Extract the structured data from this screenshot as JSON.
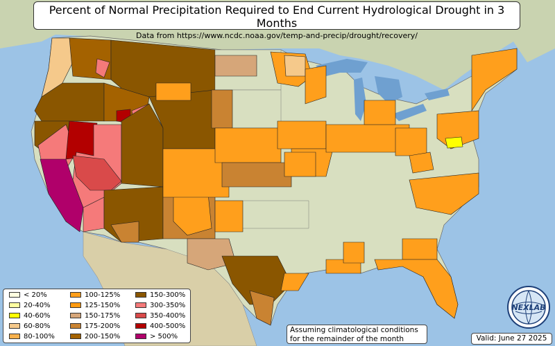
{
  "title": "Percent of Normal Precipitation Required to End Current Hydrological Drought in 3 Months",
  "subtitle": "Data from https://www.ncdc.noaa.gov/temp-and-precip/drought/recovery/",
  "note_line1": "Assuming climatological conditions",
  "note_line2": "for the remainder of the month",
  "valid": "Valid: June 27 2025",
  "logo_text": "NEXLAB",
  "colors": {
    "ocean": "#9cc3e6",
    "land": "#d8dfc0",
    "lt20": "#ffffe0",
    "20_40": "#ffffa0",
    "40_60": "#ffff00",
    "60_80": "#f5c98b",
    "80_100": "#f7b04b",
    "100_125": "#ff9f1c",
    "125_150": "#ff9a10",
    "150_175": "#d6a679",
    "175_200": "#c98332",
    "200_150": "#a46200",
    "150_300": "#8a5600",
    "300_350": "#f57a7a",
    "350_400": "#d94a4a",
    "400_500": "#b30000",
    "gt500": "#b0006a"
  },
  "legend": [
    {
      "label": "< 20%",
      "color": "#ffffe0"
    },
    {
      "label": "20-40%",
      "color": "#ffffa0"
    },
    {
      "label": "40-60%",
      "color": "#ffff00"
    },
    {
      "label": "60-80%",
      "color": "#f5c98b"
    },
    {
      "label": "80-100%",
      "color": "#f7b04b"
    },
    {
      "label": "100-125%",
      "color": "#ff9f1c"
    },
    {
      "label": "125-150%",
      "color": "#ff9a10"
    },
    {
      "label": "150-175%",
      "color": "#d6a679"
    },
    {
      "label": "175-200%",
      "color": "#c98332"
    },
    {
      "label": "200-150%",
      "color": "#a46200"
    },
    {
      "label": "150-300%",
      "color": "#8a5600"
    },
    {
      "label": "300-350%",
      "color": "#f57a7a"
    },
    {
      "label": "350-400%",
      "color": "#d94a4a"
    },
    {
      "label": "400-500%",
      "color": "#b30000"
    },
    {
      "label": "> 500%",
      "color": "#b0006a"
    }
  ]
}
